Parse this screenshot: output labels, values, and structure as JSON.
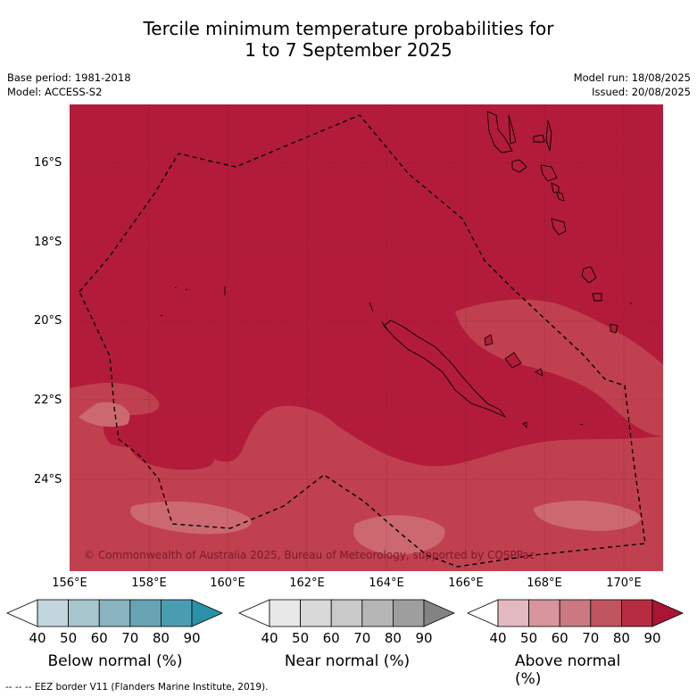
{
  "title_line1": "Tercile minimum temperature probabilities for",
  "title_line2": "1 to 7 September 2025",
  "base_period": "Base period: 1981-2018",
  "model": "Model: ACCESS-S2",
  "model_run": "Model run: 18/08/2025",
  "issued": "Issued: 20/08/2025",
  "lat_labels": [
    "16°S",
    "18°S",
    "20°S",
    "22°S",
    "24°S"
  ],
  "lon_labels": [
    "156°E",
    "158°E",
    "160°E",
    "162°E",
    "164°E",
    "166°E",
    "168°E",
    "170°E"
  ],
  "copyright": "© Commonwealth of Australia 2025, Bureau of Meteorology, supported by COSPPac",
  "colorbars": [
    {
      "label": "Below normal (%)",
      "ticks": [
        "40",
        "50",
        "60",
        "70",
        "80",
        "90"
      ],
      "colors": [
        "#ffffff",
        "#c2d6dd",
        "#a6c6cd",
        "#88b3bf",
        "#66a4b4",
        "#4a9db0",
        "#2b91a8"
      ]
    },
    {
      "label": "Near normal (%)",
      "ticks": [
        "40",
        "50",
        "60",
        "70",
        "80",
        "90"
      ],
      "colors": [
        "#ffffff",
        "#e8e8e8",
        "#d9d9d9",
        "#c9c9c9",
        "#b6b6b6",
        "#9e9e9e",
        "#838383"
      ]
    },
    {
      "label": "Above normal (%)",
      "ticks": [
        "40",
        "50",
        "60",
        "70",
        "80",
        "90"
      ],
      "colors": [
        "#ffffff",
        "#e3b9c1",
        "#d9949d",
        "#cb7881",
        "#c0545f",
        "#b62c41",
        "#aa1535"
      ]
    }
  ],
  "footer": "--  --  -- EEZ border V11 (Flanders Marine Institute, 2019).",
  "map_colors": {
    "above_80": "#b21c3a",
    "above_70": "#c0404f",
    "above_60": "#cc6870"
  }
}
